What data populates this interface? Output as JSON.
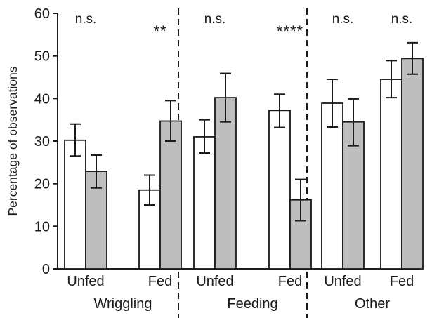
{
  "chart_data": {
    "type": "bar",
    "title": "",
    "ylabel": "Percentage of observations",
    "ylim": [
      0,
      60
    ],
    "yticks": [
      "0",
      "10",
      "20",
      "30",
      "40",
      "50",
      "60"
    ],
    "grid": false,
    "legend": "none",
    "bar_colors": {
      "unfilled": "#ffffff",
      "filled": "#bebebe",
      "stroke": "#1a1a1a"
    },
    "groups": [
      {
        "label": "Wriggling",
        "subgroups": [
          {
            "label": "Unfed",
            "significance": "n.s.",
            "bars": [
              {
                "fill": "unfilled",
                "value": 30.2,
                "err_low": 26.5,
                "err_high": 34
              },
              {
                "fill": "filled",
                "value": 22.9,
                "err_low": 19,
                "err_high": 26.7
              }
            ]
          },
          {
            "label": "Fed",
            "significance": "**",
            "bars": [
              {
                "fill": "unfilled",
                "value": 18.5,
                "err_low": 15,
                "err_high": 22
              },
              {
                "fill": "filled",
                "value": 34.7,
                "err_low": 30,
                "err_high": 39.5
              }
            ]
          }
        ]
      },
      {
        "label": "Feeding",
        "subgroups": [
          {
            "label": "Unfed",
            "significance": "n.s.",
            "bars": [
              {
                "fill": "unfilled",
                "value": 31,
                "err_low": 27.2,
                "err_high": 35
              },
              {
                "fill": "filled",
                "value": 40.2,
                "err_low": 34.5,
                "err_high": 45.9
              }
            ]
          },
          {
            "label": "Fed",
            "significance": "****",
            "bars": [
              {
                "fill": "unfilled",
                "value": 37.2,
                "err_low": 33.2,
                "err_high": 41
              },
              {
                "fill": "filled",
                "value": 16.2,
                "err_low": 11.3,
                "err_high": 21
              }
            ]
          }
        ]
      },
      {
        "label": "Other",
        "subgroups": [
          {
            "label": "Unfed",
            "significance": "n.s.",
            "bars": [
              {
                "fill": "unfilled",
                "value": 38.9,
                "err_low": 33.3,
                "err_high": 44.5
              },
              {
                "fill": "filled",
                "value": 34.5,
                "err_low": 28.9,
                "err_high": 39.9
              }
            ]
          },
          {
            "label": "Fed",
            "significance": "n.s.",
            "bars": [
              {
                "fill": "unfilled",
                "value": 44.5,
                "err_low": 40.2,
                "err_high": 48.9
              },
              {
                "fill": "filled",
                "value": 49.4,
                "err_low": 45.7,
                "err_high": 53.1
              }
            ]
          }
        ]
      }
    ]
  }
}
